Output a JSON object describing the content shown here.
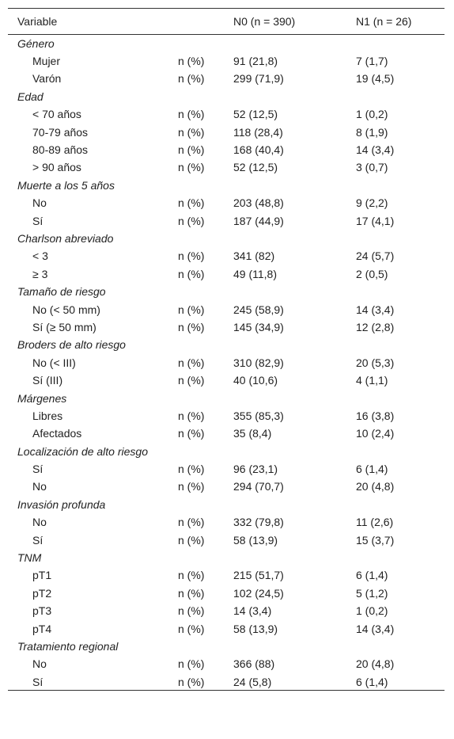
{
  "table": {
    "header": [
      "Variable",
      "N0 (n = 390)",
      "N1 (n = 26)"
    ],
    "groups": [
      {
        "title": "Género",
        "rows": [
          [
            "Mujer",
            "n (%)",
            "91 (21,8)",
            "7 (1,7)"
          ],
          [
            "Varón",
            "n (%)",
            "299 (71,9)",
            "19 (4,5)"
          ]
        ]
      },
      {
        "title": "Edad",
        "rows": [
          [
            "< 70 años",
            "n (%)",
            "52 (12,5)",
            "1 (0,2)"
          ],
          [
            "70-79 años",
            "n (%)",
            "118 (28,4)",
            "8 (1,9)"
          ],
          [
            "80-89 años",
            "n (%)",
            "168 (40,4)",
            "14 (3,4)"
          ],
          [
            "> 90 años",
            "n (%)",
            "52 (12,5)",
            "3 (0,7)"
          ]
        ]
      },
      {
        "title": "Muerte a los 5 años",
        "rows": [
          [
            "No",
            "n (%)",
            "203 (48,8)",
            "9 (2,2)"
          ],
          [
            "Sí",
            "n (%)",
            "187 (44,9)",
            "17 (4,1)"
          ]
        ]
      },
      {
        "title": "Charlson abreviado",
        "rows": [
          [
            "< 3",
            "n (%)",
            "341 (82)",
            "24 (5,7)"
          ],
          [
            "≥ 3",
            "n (%)",
            "49 (11,8)",
            "2 (0,5)"
          ]
        ]
      },
      {
        "title": "Tamaño de riesgo",
        "rows": [
          [
            "No (< 50 mm)",
            "n (%)",
            "245 (58,9)",
            "14 (3,4)"
          ],
          [
            "Sí (≥ 50 mm)",
            "n (%)",
            "145 (34,9)",
            "12 (2,8)"
          ]
        ]
      },
      {
        "title": "Broders de alto riesgo",
        "rows": [
          [
            "No (< III)",
            "n (%)",
            "310 (82,9)",
            "20 (5,3)"
          ],
          [
            "Sí (III)",
            "n (%)",
            "40 (10,6)",
            "4 (1,1)"
          ]
        ]
      },
      {
        "title": "Márgenes",
        "rows": [
          [
            "Libres",
            "n (%)",
            "355 (85,3)",
            "16 (3,8)"
          ],
          [
            "Afectados",
            "n (%)",
            "35 (8,4)",
            "10 (2,4)"
          ]
        ]
      },
      {
        "title": "Localización de alto riesgo",
        "rows": [
          [
            "Sí",
            "n (%)",
            "96 (23,1)",
            "6 (1,4)"
          ],
          [
            "No",
            "n (%)",
            "294 (70,7)",
            "20 (4,8)"
          ]
        ]
      },
      {
        "title": "Invasión profunda",
        "rows": [
          [
            "No",
            "n (%)",
            "332 (79,8)",
            "11 (2,6)"
          ],
          [
            "Sí",
            "n (%)",
            "58 (13,9)",
            "15 (3,7)"
          ]
        ]
      },
      {
        "title": "TNM",
        "rows": [
          [
            "pT1",
            "n (%)",
            "215 (51,7)",
            "6 (1,4)"
          ],
          [
            "pT2",
            "n (%)",
            "102 (24,5)",
            "5 (1,2)"
          ],
          [
            "pT3",
            "n (%)",
            "14 (3,4)",
            "1 (0,2)"
          ],
          [
            "pT4",
            "n (%)",
            "58 (13,9)",
            "14 (3,4)"
          ]
        ]
      },
      {
        "title": "Tratamiento regional",
        "rows": [
          [
            "No",
            "n (%)",
            "366 (88)",
            "20 (4,8)"
          ],
          [
            "Sí",
            "n (%)",
            "24 (5,8)",
            "6 (1,4)"
          ]
        ]
      }
    ]
  }
}
